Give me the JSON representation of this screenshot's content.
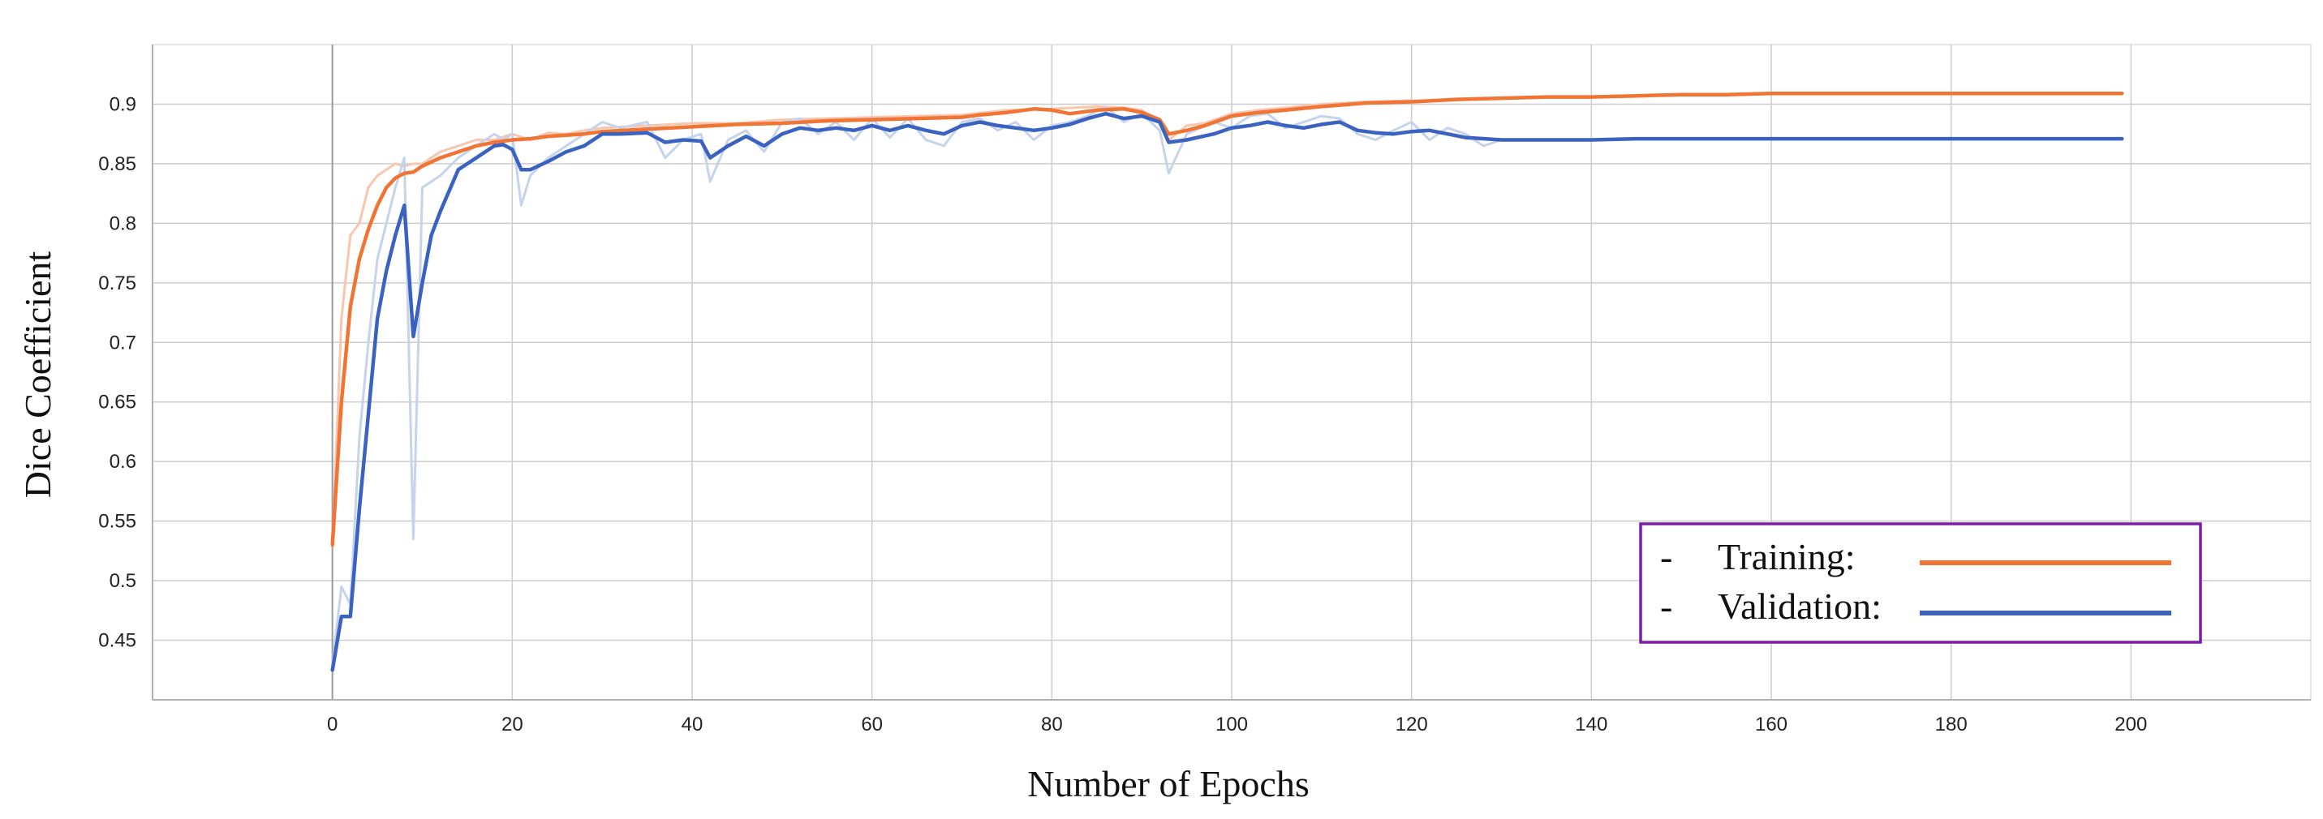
{
  "chart_data": {
    "type": "line",
    "title": "",
    "xlabel": "Number of Epochs",
    "ylabel": "Dice Coefficient",
    "xlim": [
      -20,
      220
    ],
    "ylim": [
      0.4,
      0.95
    ],
    "x_ticks": [
      0,
      20,
      40,
      60,
      80,
      100,
      120,
      140,
      160,
      180,
      200
    ],
    "y_ticks": [
      0.45,
      0.5,
      0.55,
      0.6,
      0.65,
      0.7,
      0.75,
      0.8,
      0.85,
      0.9
    ],
    "grid": true,
    "legend": {
      "position": "bottom-right",
      "prefix": "-",
      "entries": [
        "Training:",
        "Validation:"
      ]
    },
    "colors": {
      "training": "#f07434",
      "validation": "#3a62c0",
      "training_raw": "#f9c6ad",
      "validation_raw": "#c5d3ec",
      "grid": "#cccccc",
      "legend_border": "#7a1fa2"
    },
    "series": [
      {
        "name": "Training:",
        "color": "#f07434",
        "x": [
          0,
          1,
          2,
          3,
          4,
          5,
          6,
          7,
          8,
          9,
          10,
          12,
          14,
          16,
          18,
          20,
          22,
          24,
          26,
          28,
          30,
          35,
          40,
          45,
          50,
          55,
          60,
          65,
          70,
          72,
          75,
          78,
          80,
          82,
          85,
          88,
          90,
          92,
          93,
          95,
          97,
          100,
          103,
          106,
          110,
          115,
          120,
          125,
          130,
          135,
          140,
          145,
          150,
          155,
          160,
          165,
          170,
          175,
          180,
          185,
          190,
          195,
          199
        ],
        "values": [
          0.53,
          0.65,
          0.73,
          0.77,
          0.795,
          0.815,
          0.83,
          0.838,
          0.842,
          0.843,
          0.848,
          0.855,
          0.86,
          0.865,
          0.868,
          0.87,
          0.871,
          0.873,
          0.874,
          0.875,
          0.877,
          0.879,
          0.881,
          0.883,
          0.884,
          0.886,
          0.887,
          0.888,
          0.889,
          0.891,
          0.893,
          0.896,
          0.895,
          0.892,
          0.895,
          0.896,
          0.893,
          0.887,
          0.875,
          0.878,
          0.882,
          0.89,
          0.893,
          0.895,
          0.898,
          0.901,
          0.902,
          0.904,
          0.905,
          0.906,
          0.906,
          0.907,
          0.908,
          0.908,
          0.909,
          0.909,
          0.909,
          0.909,
          0.909,
          0.909,
          0.909,
          0.909,
          0.909
        ]
      },
      {
        "name": "Validation:",
        "color": "#3a62c0",
        "x": [
          0,
          1,
          2,
          3,
          4,
          5,
          6,
          7,
          8,
          9,
          10,
          11,
          12,
          14,
          16,
          18,
          19,
          20,
          21,
          22,
          24,
          26,
          28,
          30,
          32,
          35,
          37,
          39,
          41,
          42,
          44,
          46,
          48,
          50,
          52,
          54,
          56,
          58,
          60,
          62,
          64,
          66,
          68,
          70,
          72,
          74,
          76,
          78,
          80,
          82,
          84,
          86,
          88,
          90,
          92,
          93,
          95,
          98,
          100,
          102,
          104,
          106,
          108,
          110,
          112,
          114,
          116,
          118,
          120,
          122,
          124,
          126,
          130,
          135,
          140,
          145,
          150,
          155,
          160,
          170,
          180,
          190,
          199
        ],
        "values": [
          0.425,
          0.47,
          0.47,
          0.56,
          0.64,
          0.72,
          0.76,
          0.79,
          0.815,
          0.705,
          0.75,
          0.79,
          0.81,
          0.845,
          0.855,
          0.865,
          0.866,
          0.862,
          0.845,
          0.845,
          0.852,
          0.86,
          0.865,
          0.875,
          0.875,
          0.876,
          0.868,
          0.87,
          0.869,
          0.855,
          0.865,
          0.873,
          0.865,
          0.875,
          0.88,
          0.878,
          0.88,
          0.878,
          0.882,
          0.878,
          0.882,
          0.878,
          0.875,
          0.882,
          0.885,
          0.882,
          0.88,
          0.878,
          0.88,
          0.883,
          0.888,
          0.892,
          0.888,
          0.89,
          0.885,
          0.868,
          0.87,
          0.875,
          0.88,
          0.882,
          0.885,
          0.882,
          0.88,
          0.883,
          0.885,
          0.878,
          0.876,
          0.875,
          0.877,
          0.878,
          0.875,
          0.872,
          0.87,
          0.87,
          0.87,
          0.871,
          0.871,
          0.871,
          0.871,
          0.871,
          0.871,
          0.871,
          0.871
        ]
      }
    ],
    "raw_series": [
      {
        "of": "Training:",
        "color": "#f9c6ad",
        "x": [
          0,
          1,
          2,
          3,
          4,
          5,
          6,
          7,
          8,
          9,
          10,
          12,
          14,
          16,
          18,
          20,
          22,
          24,
          26,
          28,
          30,
          35,
          40,
          45,
          50,
          55,
          60,
          65,
          70,
          75,
          80,
          85,
          88,
          90,
          92,
          93,
          95,
          97,
          100,
          103,
          106,
          110,
          115,
          120
        ],
        "values": [
          0.53,
          0.72,
          0.79,
          0.8,
          0.83,
          0.84,
          0.845,
          0.85,
          0.848,
          0.85,
          0.85,
          0.86,
          0.865,
          0.87,
          0.87,
          0.875,
          0.87,
          0.876,
          0.875,
          0.878,
          0.88,
          0.882,
          0.884,
          0.884,
          0.887,
          0.888,
          0.889,
          0.89,
          0.891,
          0.895,
          0.896,
          0.898,
          0.897,
          0.895,
          0.885,
          0.87,
          0.882,
          0.884,
          0.892,
          0.895,
          0.897,
          0.9,
          0.902,
          0.903
        ]
      },
      {
        "of": "Validation:",
        "color": "#c5d3ec",
        "x": [
          0,
          1,
          2,
          3,
          4,
          5,
          6,
          7,
          8,
          9,
          10,
          12,
          14,
          16,
          18,
          19,
          20,
          21,
          22,
          24,
          26,
          28,
          30,
          32,
          35,
          37,
          39,
          41,
          42,
          44,
          46,
          48,
          50,
          52,
          54,
          56,
          58,
          60,
          62,
          64,
          66,
          68,
          70,
          72,
          74,
          76,
          78,
          80,
          82,
          84,
          86,
          88,
          90,
          92,
          93,
          95,
          98,
          100,
          102,
          104,
          106,
          108,
          110,
          112,
          114,
          116,
          118,
          120,
          122,
          124,
          126,
          128,
          130
        ],
        "values": [
          0.43,
          0.495,
          0.48,
          0.62,
          0.7,
          0.77,
          0.8,
          0.83,
          0.855,
          0.535,
          0.83,
          0.84,
          0.855,
          0.865,
          0.875,
          0.87,
          0.875,
          0.815,
          0.84,
          0.855,
          0.865,
          0.875,
          0.885,
          0.88,
          0.885,
          0.855,
          0.87,
          0.875,
          0.835,
          0.87,
          0.878,
          0.86,
          0.885,
          0.888,
          0.875,
          0.885,
          0.87,
          0.888,
          0.872,
          0.888,
          0.87,
          0.865,
          0.885,
          0.888,
          0.878,
          0.885,
          0.87,
          0.882,
          0.885,
          0.89,
          0.898,
          0.885,
          0.892,
          0.878,
          0.842,
          0.875,
          0.885,
          0.88,
          0.89,
          0.892,
          0.88,
          0.885,
          0.89,
          0.888,
          0.875,
          0.87,
          0.878,
          0.885,
          0.87,
          0.88,
          0.875,
          0.865,
          0.87
        ]
      }
    ]
  }
}
